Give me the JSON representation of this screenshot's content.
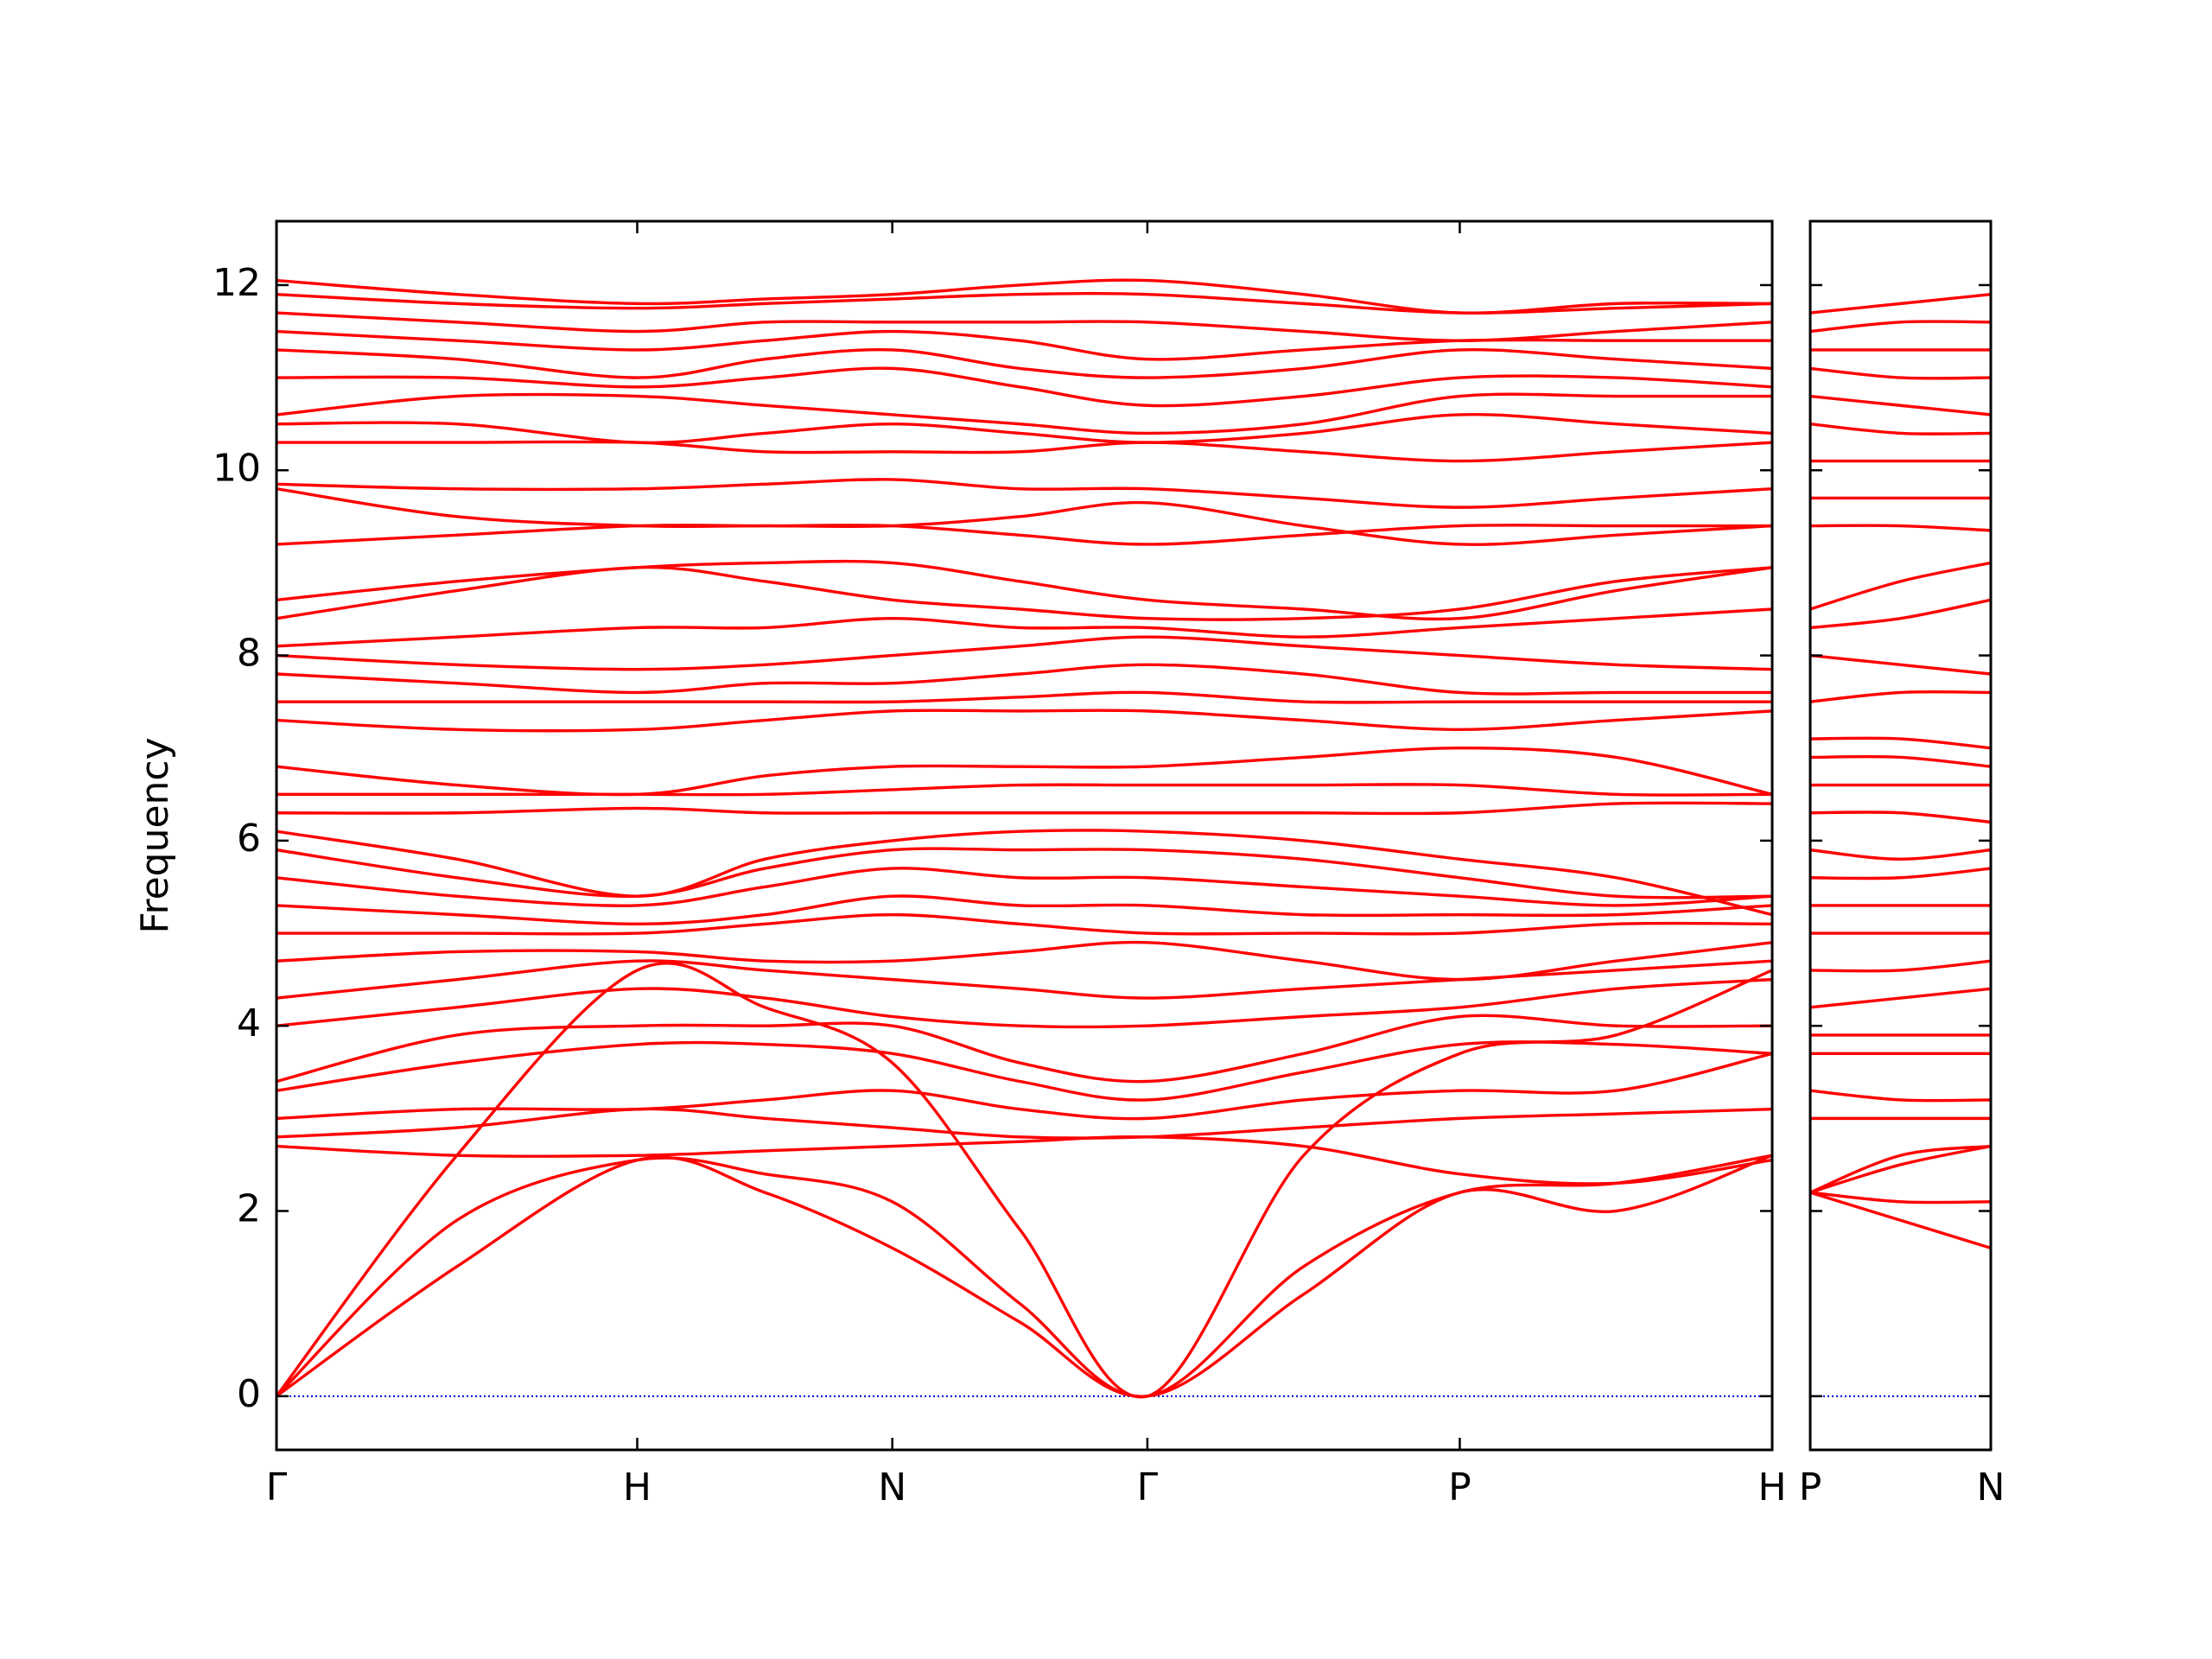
{
  "chart_data": [
    {
      "type": "line",
      "ylabel": "Frequency",
      "color": "#ff0000",
      "hline": {
        "value": 0,
        "color": "#0000cc"
      },
      "xlim": [
        0,
        4.1463
      ],
      "ylim": [
        -0.58,
        12.69
      ],
      "xticks": [
        {
          "value": 0,
          "label": "Γ"
        },
        {
          "value": 1,
          "label": "H"
        },
        {
          "value": 1.7071,
          "label": "N"
        },
        {
          "value": 2.4142,
          "label": "Γ"
        },
        {
          "value": 3.2802,
          "label": "P"
        },
        {
          "value": 4.1463,
          "label": "H"
        }
      ],
      "yticks": [
        0,
        2,
        4,
        6,
        8,
        10,
        12
      ],
      "x": [
        0,
        0.5,
        1,
        1.3536,
        1.7071,
        2.0607,
        2.4142,
        2.8472,
        3.2802,
        3.7133,
        4.1463
      ],
      "series": [
        {
          "values": [
            0,
            1.4,
            2.55,
            2.2,
            1.6,
            0.8,
            0,
            1.1,
            2.2,
            2.0,
            2.6
          ]
        },
        {
          "values": [
            0,
            1.9,
            2.55,
            2.4,
            2.1,
            1.0,
            0,
            1.4,
            2.2,
            2.3,
            2.6
          ]
        },
        {
          "values": [
            0,
            2.6,
            4.6,
            4.2,
            3.6,
            1.8,
            0,
            2.6,
            3.7,
            3.9,
            4.6
          ]
        },
        {
          "values": [
            2.7,
            2.6,
            2.6,
            2.65,
            2.7,
            2.75,
            2.8,
            2.7,
            2.4,
            2.3,
            2.55
          ]
        },
        {
          "values": [
            2.8,
            2.9,
            3.1,
            3.0,
            2.9,
            2.8,
            2.8,
            2.9,
            3.0,
            3.05,
            3.1
          ]
        },
        {
          "values": [
            3.0,
            3.1,
            3.1,
            3.2,
            3.3,
            3.1,
            3.0,
            3.2,
            3.3,
            3.3,
            3.7
          ]
        },
        {
          "values": [
            3.3,
            3.6,
            3.8,
            3.8,
            3.7,
            3.4,
            3.2,
            3.5,
            3.8,
            3.8,
            3.7
          ]
        },
        {
          "values": [
            3.4,
            3.9,
            4.0,
            4.0,
            4.0,
            3.6,
            3.4,
            3.7,
            4.1,
            4.0,
            4.0
          ]
        },
        {
          "values": [
            4.0,
            4.2,
            4.4,
            4.3,
            4.1,
            4.0,
            4.0,
            4.1,
            4.2,
            4.4,
            4.5
          ]
        },
        {
          "values": [
            4.3,
            4.5,
            4.7,
            4.6,
            4.5,
            4.4,
            4.3,
            4.4,
            4.5,
            4.6,
            4.7
          ]
        },
        {
          "values": [
            4.7,
            4.8,
            4.8,
            4.7,
            4.7,
            4.8,
            4.9,
            4.7,
            4.5,
            4.7,
            4.9
          ]
        },
        {
          "values": [
            5.0,
            5.0,
            5.0,
            5.1,
            5.2,
            5.1,
            5.0,
            5.0,
            5.0,
            5.1,
            5.1
          ]
        },
        {
          "values": [
            5.3,
            5.2,
            5.1,
            5.2,
            5.4,
            5.3,
            5.3,
            5.2,
            5.2,
            5.2,
            5.3
          ]
        },
        {
          "values": [
            5.6,
            5.4,
            5.3,
            5.5,
            5.7,
            5.6,
            5.6,
            5.5,
            5.4,
            5.3,
            5.4
          ]
        },
        {
          "values": [
            5.9,
            5.6,
            5.4,
            5.7,
            5.9,
            5.9,
            5.9,
            5.8,
            5.6,
            5.4,
            5.4
          ]
        },
        {
          "values": [
            6.1,
            5.8,
            5.4,
            5.8,
            6.0,
            6.1,
            6.1,
            6.0,
            5.8,
            5.6,
            5.2
          ]
        },
        {
          "values": [
            6.3,
            6.3,
            6.35,
            6.3,
            6.3,
            6.3,
            6.3,
            6.3,
            6.3,
            6.4,
            6.4
          ]
        },
        {
          "values": [
            6.5,
            6.5,
            6.5,
            6.5,
            6.55,
            6.6,
            6.6,
            6.6,
            6.6,
            6.5,
            6.5
          ]
        },
        {
          "values": [
            6.8,
            6.6,
            6.5,
            6.7,
            6.8,
            6.8,
            6.8,
            6.9,
            7.0,
            6.9,
            6.5
          ]
        },
        {
          "values": [
            7.3,
            7.2,
            7.2,
            7.3,
            7.4,
            7.4,
            7.4,
            7.3,
            7.2,
            7.3,
            7.4
          ]
        },
        {
          "values": [
            7.5,
            7.5,
            7.5,
            7.5,
            7.5,
            7.55,
            7.6,
            7.5,
            7.5,
            7.5,
            7.5
          ]
        },
        {
          "values": [
            7.8,
            7.7,
            7.6,
            7.7,
            7.7,
            7.8,
            7.9,
            7.8,
            7.6,
            7.6,
            7.6
          ]
        },
        {
          "values": [
            8.0,
            7.9,
            7.85,
            7.9,
            8.0,
            8.1,
            8.2,
            8.1,
            8.0,
            7.9,
            7.85
          ]
        },
        {
          "values": [
            8.1,
            8.2,
            8.3,
            8.3,
            8.4,
            8.3,
            8.3,
            8.2,
            8.3,
            8.4,
            8.5
          ]
        },
        {
          "values": [
            8.4,
            8.7,
            8.95,
            8.8,
            8.6,
            8.5,
            8.4,
            8.4,
            8.5,
            8.8,
            8.95
          ]
        },
        {
          "values": [
            8.6,
            8.8,
            8.95,
            9.0,
            9.0,
            8.8,
            8.6,
            8.5,
            8.4,
            8.7,
            8.95
          ]
        },
        {
          "values": [
            9.2,
            9.3,
            9.4,
            9.4,
            9.4,
            9.3,
            9.2,
            9.3,
            9.4,
            9.4,
            9.4
          ]
        },
        {
          "values": [
            9.8,
            9.5,
            9.4,
            9.4,
            9.4,
            9.5,
            9.65,
            9.4,
            9.2,
            9.3,
            9.4
          ]
        },
        {
          "values": [
            9.85,
            9.8,
            9.8,
            9.85,
            9.9,
            9.8,
            9.8,
            9.7,
            9.6,
            9.7,
            9.8
          ]
        },
        {
          "values": [
            10.3,
            10.3,
            10.3,
            10.2,
            10.2,
            10.2,
            10.3,
            10.2,
            10.1,
            10.2,
            10.3
          ]
        },
        {
          "values": [
            10.5,
            10.5,
            10.3,
            10.4,
            10.5,
            10.4,
            10.3,
            10.4,
            10.6,
            10.5,
            10.4
          ]
        },
        {
          "values": [
            10.6,
            10.8,
            10.8,
            10.7,
            10.6,
            10.5,
            10.4,
            10.5,
            10.8,
            10.8,
            10.8
          ]
        },
        {
          "values": [
            11.0,
            11.0,
            10.9,
            11.0,
            11.1,
            10.9,
            10.7,
            10.8,
            11.0,
            11.0,
            10.9
          ]
        },
        {
          "values": [
            11.3,
            11.2,
            11.0,
            11.2,
            11.3,
            11.1,
            11.0,
            11.1,
            11.3,
            11.2,
            11.1
          ]
        },
        {
          "values": [
            11.5,
            11.4,
            11.3,
            11.4,
            11.5,
            11.4,
            11.2,
            11.3,
            11.4,
            11.4,
            11.4
          ]
        },
        {
          "values": [
            11.7,
            11.6,
            11.5,
            11.6,
            11.6,
            11.6,
            11.6,
            11.5,
            11.4,
            11.5,
            11.6
          ]
        },
        {
          "values": [
            11.9,
            11.8,
            11.75,
            11.8,
            11.85,
            11.9,
            11.9,
            11.8,
            11.7,
            11.75,
            11.8
          ]
        },
        {
          "values": [
            12.05,
            11.9,
            11.8,
            11.85,
            11.9,
            12.0,
            12.05,
            11.9,
            11.7,
            11.8,
            11.8
          ]
        }
      ]
    },
    {
      "type": "line",
      "color": "#ff0000",
      "sharey": true,
      "hline": {
        "value": 0,
        "color": "#0000cc"
      },
      "xlim": [
        4.1463,
        4.6463
      ],
      "ylim": [
        -0.58,
        12.69
      ],
      "xticks": [
        {
          "value": 4.1463,
          "label": "P"
        },
        {
          "value": 4.6463,
          "label": "N"
        }
      ],
      "x": [
        4.1463,
        4.3963,
        4.6463
      ],
      "series": [
        {
          "values": [
            2.2,
            1.9,
            1.6
          ]
        },
        {
          "values": [
            2.2,
            2.1,
            2.1
          ]
        },
        {
          "values": [
            2.2,
            2.5,
            2.7
          ]
        },
        {
          "values": [
            2.2,
            2.6,
            2.7
          ]
        },
        {
          "values": [
            3.0,
            3.0,
            3.0
          ]
        },
        {
          "values": [
            3.3,
            3.2,
            3.2
          ]
        },
        {
          "values": [
            3.7,
            3.7,
            3.7
          ]
        },
        {
          "values": [
            3.9,
            3.9,
            3.9
          ]
        },
        {
          "values": [
            4.2,
            4.3,
            4.4
          ]
        },
        {
          "values": [
            4.6,
            4.6,
            4.7
          ]
        },
        {
          "values": [
            5.0,
            5.0,
            5.0
          ]
        },
        {
          "values": [
            5.3,
            5.3,
            5.3
          ]
        },
        {
          "values": [
            5.6,
            5.6,
            5.7
          ]
        },
        {
          "values": [
            5.9,
            5.8,
            5.9
          ]
        },
        {
          "values": [
            6.3,
            6.3,
            6.2
          ]
        },
        {
          "values": [
            6.6,
            6.6,
            6.6
          ]
        },
        {
          "values": [
            6.9,
            6.9,
            6.8
          ]
        },
        {
          "values": [
            7.1,
            7.1,
            7.0
          ]
        },
        {
          "values": [
            7.5,
            7.6,
            7.6
          ]
        },
        {
          "values": [
            8.0,
            7.9,
            7.8
          ]
        },
        {
          "values": [
            8.3,
            8.4,
            8.6
          ]
        },
        {
          "values": [
            8.5,
            8.8,
            9.0
          ]
        },
        {
          "values": [
            9.4,
            9.4,
            9.35
          ]
        },
        {
          "values": [
            9.7,
            9.7,
            9.7
          ]
        },
        {
          "values": [
            10.1,
            10.1,
            10.1
          ]
        },
        {
          "values": [
            10.5,
            10.4,
            10.4
          ]
        },
        {
          "values": [
            10.8,
            10.7,
            10.6
          ]
        },
        {
          "values": [
            11.1,
            11.0,
            11.0
          ]
        },
        {
          "values": [
            11.3,
            11.3,
            11.3
          ]
        },
        {
          "values": [
            11.5,
            11.6,
            11.6
          ]
        },
        {
          "values": [
            11.7,
            11.8,
            11.9
          ]
        }
      ]
    }
  ]
}
